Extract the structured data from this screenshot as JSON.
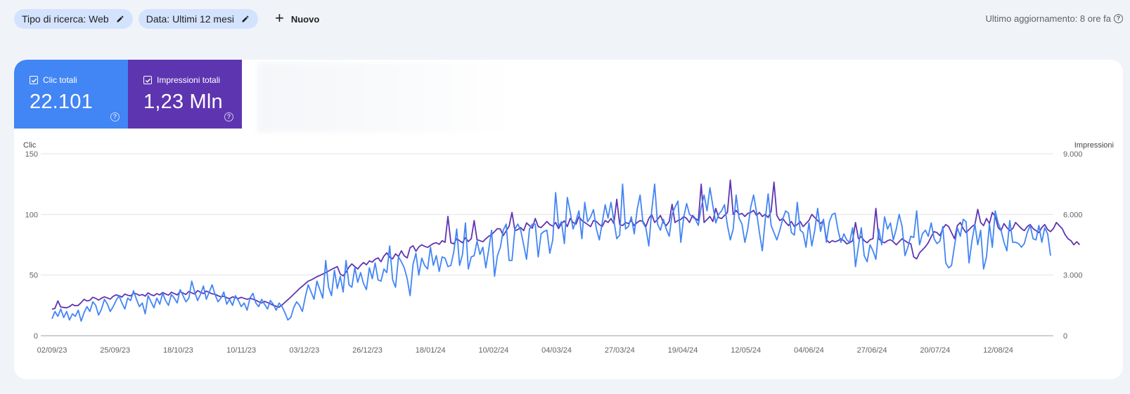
{
  "filters": {
    "search_type": "Tipo di ricerca: Web",
    "date": "Data: Ultimi 12 mesi",
    "new_label": "Nuovo"
  },
  "updated_text": "Ultimo aggiornamento: 8 ore fa",
  "metrics": {
    "clicks": {
      "label": "Clic totali",
      "value": "22.101",
      "checked": true,
      "color": "#4285f4"
    },
    "impressions": {
      "label": "Impressioni totali",
      "value": "1,23 Mln",
      "checked": true,
      "color": "#5e35b1"
    }
  },
  "chart_data": {
    "type": "line",
    "left_axis_label": "Clic",
    "right_axis_label": "Impressioni",
    "left_ticks": [
      "150",
      "100",
      "50",
      "0"
    ],
    "right_ticks": [
      "9.000",
      "6.000",
      "3.000",
      "0"
    ],
    "left_range": [
      0,
      150
    ],
    "right_range": [
      0,
      9000
    ],
    "x_labels": [
      "02/09/23",
      "25/09/23",
      "18/10/23",
      "10/11/23",
      "03/12/23",
      "26/12/23",
      "18/01/24",
      "10/02/24",
      "04/03/24",
      "27/03/24",
      "19/04/24",
      "12/05/24",
      "04/06/24",
      "27/06/24",
      "20/07/24",
      "12/08/24"
    ],
    "grid": true,
    "series": [
      {
        "name": "Clic",
        "color": "#4285f4",
        "axis": "left",
        "values": [
          14,
          20,
          16,
          22,
          15,
          20,
          13,
          18,
          16,
          21,
          12,
          19,
          24,
          20,
          28,
          25,
          17,
          22,
          30,
          26,
          20,
          24,
          29,
          33,
          27,
          22,
          31,
          29,
          37,
          30,
          24,
          27,
          18,
          33,
          28,
          23,
          31,
          26,
          35,
          29,
          25,
          34,
          31,
          27,
          38,
          33,
          28,
          31,
          45,
          36,
          29,
          34,
          41,
          30,
          36,
          42,
          34,
          28,
          31,
          36,
          26,
          30,
          25,
          33,
          29,
          24,
          27,
          21,
          31,
          35,
          27,
          24,
          30,
          26,
          22,
          29,
          26,
          21,
          27,
          24,
          19,
          13,
          15,
          23,
          28,
          25,
          20,
          32,
          42,
          36,
          30,
          45,
          38,
          31,
          62,
          40,
          33,
          54,
          39,
          49,
          36,
          62,
          42,
          40,
          56,
          44,
          52,
          43,
          38,
          56,
          47,
          60,
          46,
          45,
          55,
          52,
          74,
          46,
          40,
          65,
          61,
          56,
          47,
          33,
          59,
          68,
          50,
          64,
          58,
          55,
          73,
          58,
          66,
          53,
          65,
          64,
          57,
          58,
          69,
          88,
          58,
          67,
          93,
          55,
          65,
          66,
          78,
          67,
          73,
          56,
          71,
          87,
          49,
          66,
          73,
          87,
          92,
          62,
          62,
          88,
          92,
          87,
          75,
          63,
          88,
          92,
          92,
          65,
          84,
          86,
          87,
          68,
          79,
          118,
          90,
          94,
          76,
          114,
          102,
          88,
          95,
          103,
          80,
          110,
          94,
          98,
          104,
          88,
          79,
          93,
          108,
          97,
          110,
          95,
          80,
          83,
          125,
          88,
          90,
          98,
          84,
          104,
          116,
          93,
          89,
          74,
          103,
          125,
          92,
          87,
          96,
          88,
          82,
          100,
          106,
          111,
          77,
          98,
          109,
          100,
          98,
          96,
          91,
          106,
          116,
          103,
          122,
          107,
          93,
          100,
          103,
          108,
          91,
          79,
          88,
          116,
          97,
          92,
          77,
          88,
          106,
          116,
          102,
          85,
          70,
          96,
          117,
          91,
          85,
          79,
          87,
          96,
          103,
          101,
          85,
          83,
          110,
          87,
          85,
          73,
          93,
          74,
          87,
          105,
          86,
          96,
          77,
          94,
          100,
          101,
          87,
          77,
          84,
          79,
          77,
          89,
          57,
          74,
          89,
          66,
          61,
          75,
          70,
          63,
          88,
          75,
          98,
          88,
          93,
          79,
          88,
          100,
          90,
          66,
          73,
          82,
          81,
          103,
          75,
          84,
          87,
          82,
          93,
          80,
          76,
          78,
          90,
          60,
          56,
          58,
          74,
          89,
          82,
          96,
          94,
          60,
          78,
          92,
          75,
          87,
          55,
          65,
          92,
          73,
          103,
          93,
          87,
          77,
          70,
          95,
          77,
          77,
          76,
          73,
          76,
          85,
          91,
          80,
          79,
          91,
          77,
          89,
          84,
          66
        ]
      },
      {
        "name": "Impressioni",
        "color": "#5e35b1",
        "axis": "right",
        "values": [
          1310,
          1350,
          1720,
          1420,
          1400,
          1380,
          1440,
          1550,
          1480,
          1500,
          1640,
          1800,
          1720,
          1750,
          1900,
          1850,
          1760,
          1860,
          1920,
          1870,
          1810,
          1950,
          2020,
          1980,
          1910,
          2060,
          2000,
          1970,
          2100,
          2070,
          1990,
          2040,
          1960,
          2120,
          2030,
          1980,
          2080,
          2020,
          2140,
          2060,
          2010,
          2150,
          2090,
          2020,
          2180,
          2110,
          2040,
          2190,
          2120,
          2060,
          2230,
          2150,
          2080,
          2210,
          2140,
          2070,
          2050,
          1980,
          1920,
          1960,
          1880,
          1830,
          1920,
          1880,
          1840,
          1900,
          1850,
          1800,
          1850,
          1810,
          1750,
          1680,
          1620,
          1700,
          1640,
          1580,
          1500,
          1460,
          1410,
          1520,
          1650,
          1780,
          1910,
          2050,
          2190,
          2330,
          2450,
          2580,
          2700,
          2760,
          2840,
          2920,
          2980,
          3050,
          3120,
          3200,
          3280,
          3350,
          3420,
          3050,
          2960,
          3150,
          3400,
          3550,
          3420,
          3300,
          3480,
          3620,
          3510,
          3700,
          3640,
          3780,
          3850,
          3660,
          3940,
          4100,
          3880,
          3800,
          4050,
          3920,
          4200,
          3950,
          3850,
          4350,
          4450,
          4180,
          4390,
          4500,
          4420,
          4370,
          4470,
          4560,
          4600,
          4520,
          4700,
          4620,
          5900,
          4600,
          4550,
          4800,
          4700,
          4600,
          4850,
          4660,
          4800,
          5700,
          4750,
          4700,
          4650,
          4800,
          4920,
          5000,
          5150,
          5300,
          5280,
          4950,
          5180,
          5420,
          6100,
          5200,
          5250,
          5350,
          5200,
          5580,
          5450,
          5320,
          5800,
          5400,
          5350,
          5500,
          5650,
          5500,
          5420,
          5600,
          5300,
          5550,
          5680,
          5400,
          5800,
          5600,
          5520,
          5900,
          5700,
          5600,
          5500,
          5400,
          5700,
          5650,
          5500,
          5400,
          5700,
          5600,
          5800,
          5550,
          6750,
          5500,
          5450,
          5600,
          5550,
          5700,
          5450,
          5600,
          5700,
          5650,
          5400,
          5800,
          6000,
          5600,
          5750,
          5950,
          5600,
          5450,
          5650,
          6500,
          5600,
          5700,
          5750,
          5900,
          5800,
          5600,
          5950,
          5800,
          5700,
          7500,
          5600,
          5750,
          5900,
          5650,
          6300,
          5850,
          5800,
          5950,
          6100,
          7700,
          6000,
          6200,
          6000,
          6050,
          5900,
          6050,
          6100,
          6200,
          5950,
          6100,
          5900,
          6000,
          5850,
          6150,
          7600,
          5950,
          5700,
          5800,
          5600,
          5450,
          5650,
          5400,
          5500,
          5650,
          5400,
          5550,
          5700,
          6000,
          5850,
          5700,
          5550,
          5700,
          4750,
          4600,
          4700,
          4650,
          4700,
          4800,
          4700,
          4550,
          4600,
          4700,
          5600,
          4800,
          4900,
          4700,
          4600,
          4750,
          4800,
          6300,
          4800,
          4650,
          4600,
          4700,
          4750,
          4650,
          4500,
          4650,
          4800,
          4700,
          4600,
          4550,
          3900,
          3800,
          4100,
          4250,
          4400,
          4600,
          4900,
          5150,
          5100,
          4950,
          5300,
          5500,
          5400,
          5100,
          4800,
          5450,
          5600,
          5300,
          5100,
          5250,
          5400,
          5500,
          6250,
          5600,
          5450,
          5800,
          5550,
          6100,
          5900,
          5350,
          5200,
          5550,
          5350,
          5200,
          5300,
          5600,
          5450,
          5300,
          5200,
          5400,
          5500,
          5300,
          5200,
          5100,
          5350,
          5500,
          5250,
          5150,
          5300,
          5600,
          5450,
          5300,
          5000,
          4800,
          4700,
          4500,
          4650,
          4500
        ]
      }
    ]
  }
}
